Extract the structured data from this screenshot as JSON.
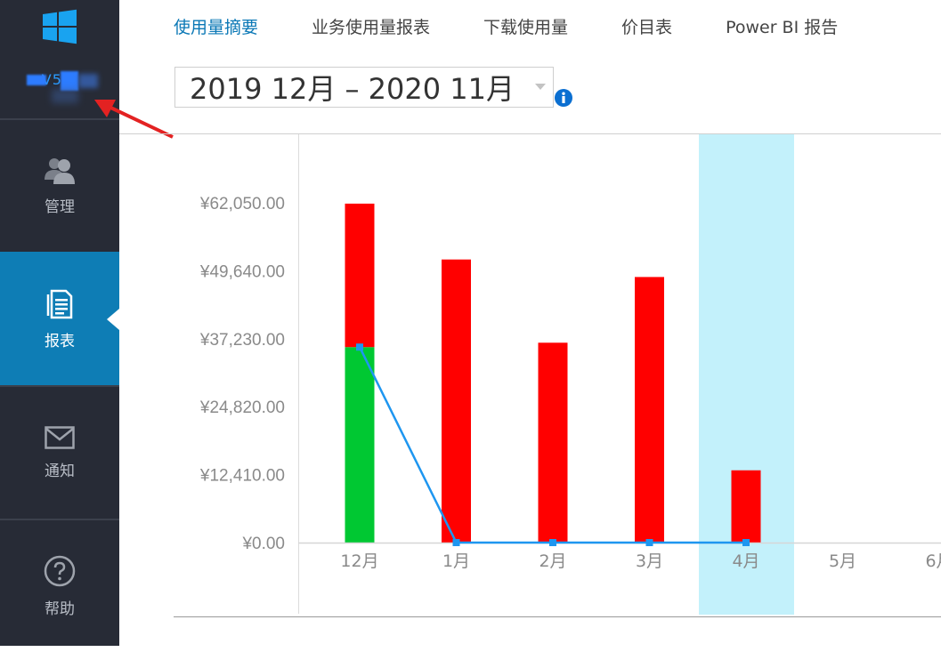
{
  "sidebar": {
    "user_id": "V5  0",
    "items": [
      {
        "label": "管理",
        "icon": "users-icon"
      },
      {
        "label": "报表",
        "icon": "report-icon",
        "active": true
      },
      {
        "label": "通知",
        "icon": "mail-icon"
      },
      {
        "label": "帮助",
        "icon": "help-icon"
      }
    ]
  },
  "tabs": [
    {
      "label": "使用量摘要",
      "active": true
    },
    {
      "label": "业务使用量报表"
    },
    {
      "label": "下载使用量"
    },
    {
      "label": "价目表"
    },
    {
      "label": "Power BI 报告"
    }
  ],
  "date_range": {
    "value": "2019 12月 – 2020 11月"
  },
  "colors": {
    "accent": "#0b78b6",
    "bar_red": "#ff0000",
    "bar_green": "#00c832",
    "line_blue": "#1e96f0",
    "highlight": "#c3f1fb"
  },
  "chart_data": {
    "type": "bar",
    "categories": [
      "12月",
      "1月",
      "2月",
      "3月",
      "4月",
      "5月",
      "6月"
    ],
    "y_ticks": [
      "¥0.00",
      "¥12,410.00",
      "¥24,820.00",
      "¥37,230.00",
      "¥49,640.00",
      "¥62,050.00"
    ],
    "ylim": [
      0,
      62050
    ],
    "series": [
      {
        "color": "#00c832",
        "values": [
          35700,
          0,
          0,
          0,
          0,
          0,
          0
        ]
      },
      {
        "color": "#ff0000",
        "values": [
          26200,
          51700,
          36500,
          48500,
          13200,
          0,
          0
        ]
      }
    ],
    "line": {
      "color": "#1e96f0",
      "values": [
        35700,
        0,
        0,
        0,
        0
      ]
    },
    "highlight_category": "4月",
    "grid": false
  }
}
